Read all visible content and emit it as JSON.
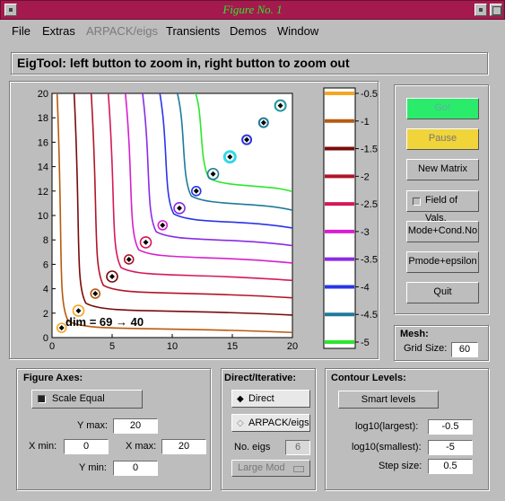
{
  "window": {
    "title": "Figure No. 1"
  },
  "menu": [
    {
      "label": "File",
      "enabled": true
    },
    {
      "label": "Extras",
      "enabled": true
    },
    {
      "label": "ARPACK/eigs",
      "enabled": false
    },
    {
      "label": "Transients",
      "enabled": true
    },
    {
      "label": "Demos",
      "enabled": true
    },
    {
      "label": "Window",
      "enabled": true
    }
  ],
  "message": "EigTool: left button to zoom in, right button to zoom out",
  "chart_data": {
    "type": "line",
    "title": "",
    "xlabel": "",
    "ylabel": "",
    "xlim": [
      0,
      20
    ],
    "ylim": [
      0,
      20
    ],
    "xticks": [
      0,
      5,
      10,
      15,
      20
    ],
    "yticks": [
      0,
      2,
      4,
      6,
      8,
      10,
      12,
      14,
      16,
      18,
      20
    ],
    "annotation": "dim = 69 → 40",
    "eigenvalues": [
      {
        "x": 0.8,
        "y": 0.8
      },
      {
        "x": 2.2,
        "y": 2.2
      },
      {
        "x": 3.6,
        "y": 3.6
      },
      {
        "x": 5.0,
        "y": 5.0
      },
      {
        "x": 6.4,
        "y": 6.4
      },
      {
        "x": 7.8,
        "y": 7.8
      },
      {
        "x": 9.2,
        "y": 9.2
      },
      {
        "x": 10.6,
        "y": 10.6
      },
      {
        "x": 12.0,
        "y": 12.0
      },
      {
        "x": 13.4,
        "y": 13.4
      },
      {
        "x": 14.8,
        "y": 14.8
      },
      {
        "x": 16.2,
        "y": 16.2
      },
      {
        "x": 17.6,
        "y": 17.6
      },
      {
        "x": 19.0,
        "y": 19.0
      }
    ],
    "contour_levels": [
      {
        "label": "-0.5",
        "value": -0.5,
        "color": "#f5a623"
      },
      {
        "label": "-1",
        "value": -1.0,
        "color": "#b85a0e"
      },
      {
        "label": "-1.5",
        "value": -1.5,
        "color": "#7a0a0a"
      },
      {
        "label": "-2",
        "value": -2.0,
        "color": "#b01528"
      },
      {
        "label": "-2.5",
        "value": -2.5,
        "color": "#d6185a"
      },
      {
        "label": "-3",
        "value": -3.0,
        "color": "#d61fd0"
      },
      {
        "label": "-3.5",
        "value": -3.5,
        "color": "#8a2be6"
      },
      {
        "label": "-4",
        "value": -4.0,
        "color": "#2a35e8"
      },
      {
        "label": "-4.5",
        "value": -4.5,
        "color": "#1f7a9a"
      },
      {
        "label": "-5",
        "value": -5.0,
        "color": "#2de62d"
      }
    ]
  },
  "controls": {
    "go": "Go!",
    "pause": "Pause",
    "new_matrix": "New Matrix",
    "field_of_vals": "Field of Vals.",
    "mode_cond": "Mode+Cond.No",
    "pmode_eps": "Pmode+epsilon",
    "quit": "Quit"
  },
  "mesh": {
    "title": "Mesh:",
    "grid_size_label": "Grid Size:",
    "grid_size": "60"
  },
  "figure_axes": {
    "title": "Figure Axes:",
    "scale_equal": "Scale Equal",
    "ymax_label": "Y max:",
    "ymax": "20",
    "xmin_label": "X min:",
    "xmin": "0",
    "xmax_label": "X max:",
    "xmax": "20",
    "ymin_label": "Y min:",
    "ymin": "0"
  },
  "direct_iterative": {
    "title": "Direct/Iterative:",
    "direct": "Direct",
    "arpack": "ARPACK/eigs",
    "no_eigs_label": "No. eigs",
    "no_eigs": "6",
    "which": "Large Mod"
  },
  "contour_panel": {
    "title": "Contour Levels:",
    "smart": "Smart  levels",
    "largest_label": "log10(largest):",
    "largest": "-0.5",
    "smallest_label": "log10(smallest):",
    "smallest": "-5",
    "step_label": "Step size:",
    "step": "0.5"
  }
}
